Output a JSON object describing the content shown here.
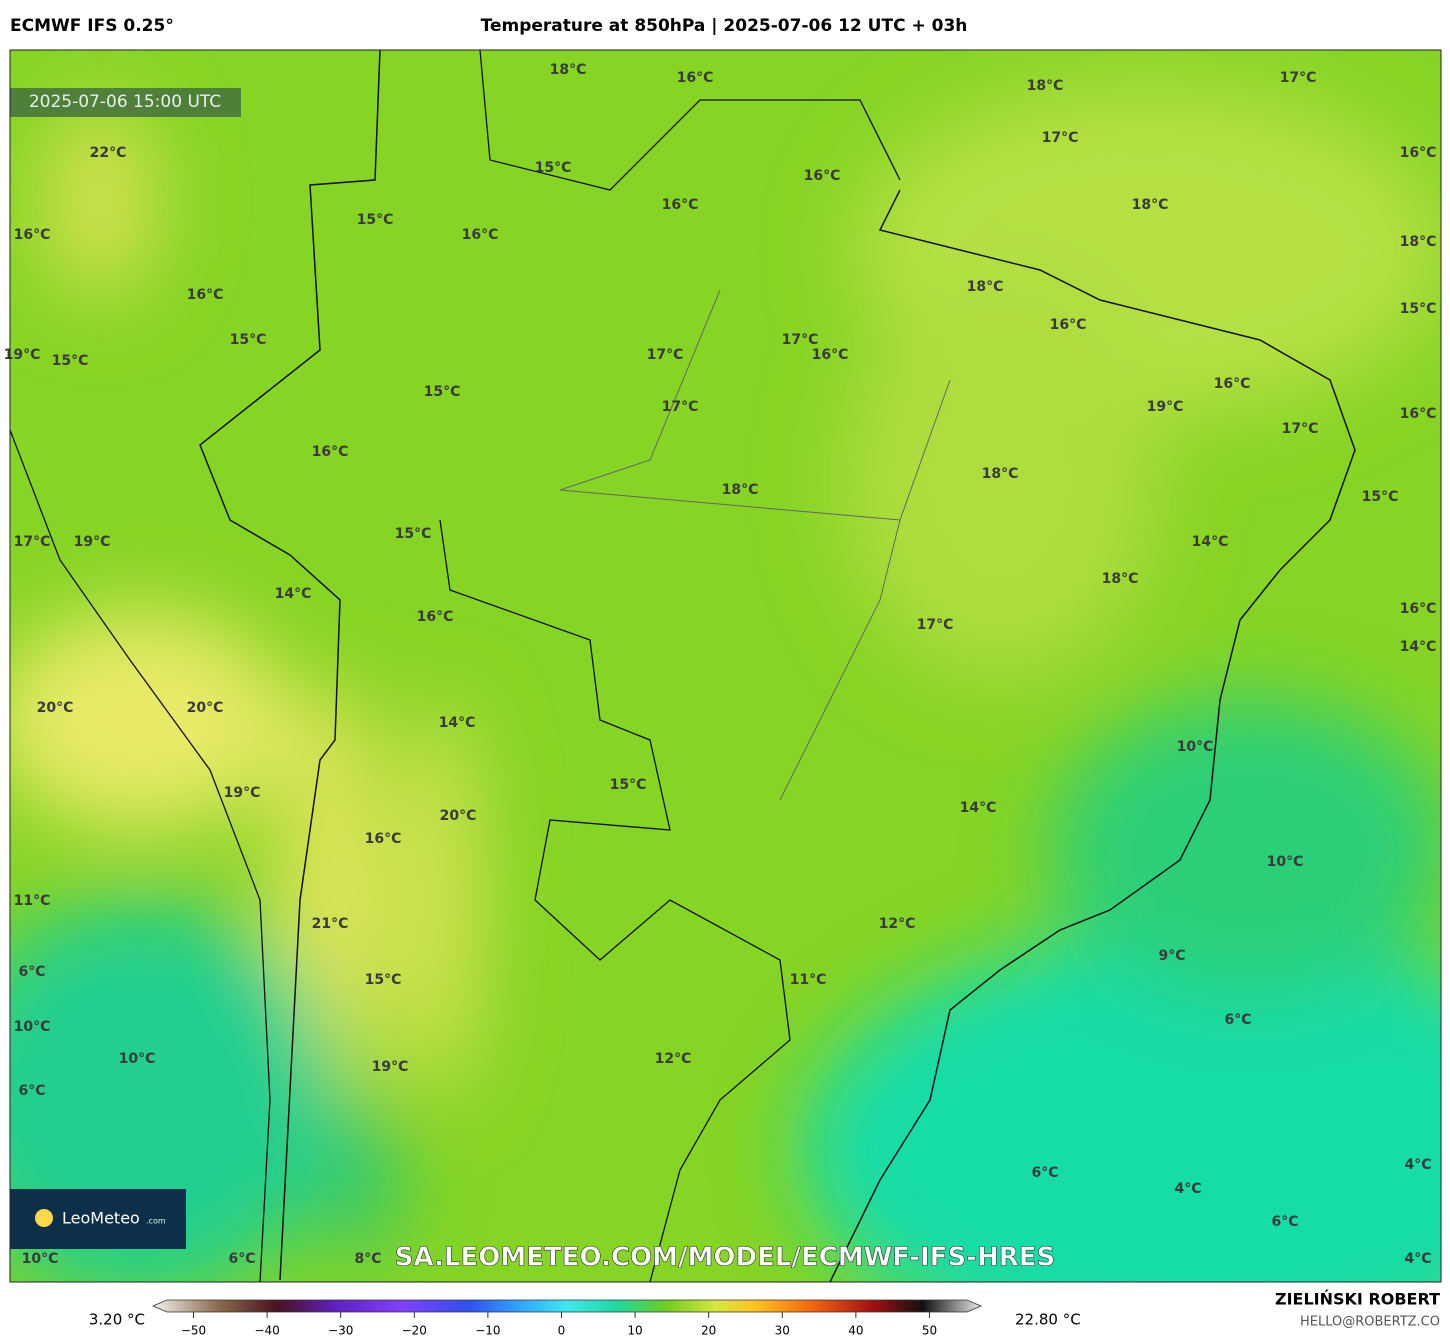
{
  "header": {
    "model": "ECMWF IFS 0.25°",
    "title": "Temperature at 850hPa | 2025-07-06 12 UTC + 03h"
  },
  "map": {
    "timestamp": "2025-07-06 15:00 UTC",
    "logo": "LeoMeteo",
    "logo_suffix": ".com",
    "watermark": "SA.LEOMETEO.COM/MODEL/ECMWF-IFS-HRES",
    "labels": [
      "18°C",
      "16°C",
      "18°C",
      "17°C",
      "22°C",
      "15°C",
      "17°C",
      "16°C",
      "16°C",
      "15°C",
      "16°C",
      "16°C",
      "18°C",
      "16°C",
      "18°C",
      "16°C",
      "18°C",
      "16°C",
      "15°C",
      "19°C",
      "15°C",
      "15°C",
      "17°C",
      "17°C",
      "16°C",
      "15°C",
      "16°C",
      "19°C",
      "17°C",
      "16°C",
      "17°C",
      "16°C",
      "18°C",
      "18°C",
      "15°C",
      "15°C",
      "17°C",
      "19°C",
      "14°C",
      "18°C",
      "14°C",
      "16°C",
      "17°C",
      "16°C",
      "14°C",
      "20°C",
      "20°C",
      "14°C",
      "10°C",
      "15°C",
      "19°C",
      "14°C",
      "20°C",
      "16°C",
      "10°C",
      "11°C",
      "21°C",
      "12°C",
      "9°C",
      "6°C",
      "15°C",
      "11°C",
      "10°C",
      "6°C",
      "10°C",
      "12°C",
      "19°C",
      "6°C",
      "6°C",
      "4°C",
      "4°C",
      "6°C",
      "10°C",
      "6°C",
      "8°C",
      "4°C"
    ]
  },
  "colorbar": {
    "min_label": "3.20 °C",
    "max_label": "22.80 °C",
    "lim": [
      -53.6,
      55.1
    ],
    "ticks": [
      {
        "value": -50,
        "label": "−50"
      },
      {
        "value": -40,
        "label": "−40"
      },
      {
        "value": -30,
        "label": "−30"
      },
      {
        "value": -20,
        "label": "−20"
      },
      {
        "value": -10,
        "label": "−10"
      },
      0,
      10,
      20,
      30,
      40,
      50
    ]
  },
  "footer": {
    "author": "ZIELIŃSKI ROBERT",
    "email": "HELLO@ROBERTZ.CO"
  }
}
